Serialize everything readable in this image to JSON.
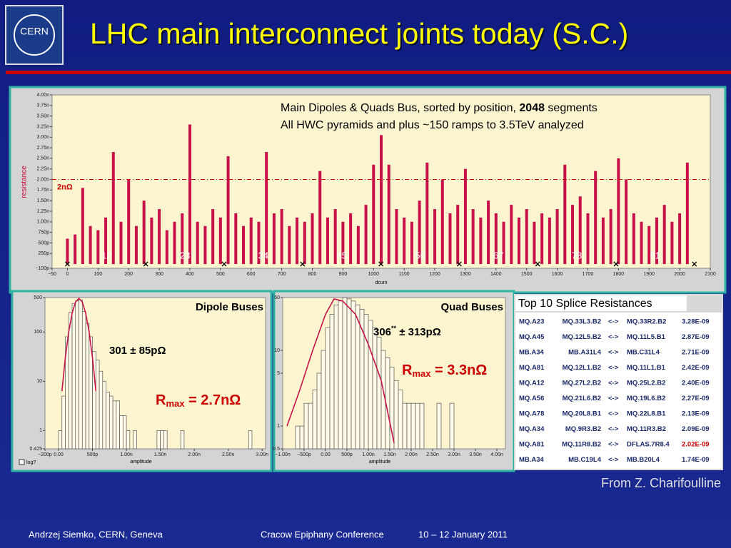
{
  "header": {
    "title": "LHC main interconnect joints today (S.C.)",
    "logo": "CERN"
  },
  "chart_data": [
    {
      "type": "bar",
      "note": {
        "line1": "Main Dipoles & Quads Bus, sorted by position, ",
        "line1_bold": "2048",
        "line1_end": " segments",
        "line2": "All HWC pyramids and plus ~150 ramps to 3.5TeV analyzed"
      },
      "y_label": "resistance",
      "x_label": "dcum",
      "color": "#c8104a",
      "x": [
        0,
        25,
        50,
        75,
        100,
        125,
        150,
        175,
        200,
        225,
        250,
        275,
        300,
        325,
        350,
        375,
        400,
        425,
        450,
        475,
        500,
        525,
        550,
        575,
        600,
        625,
        650,
        675,
        700,
        725,
        750,
        775,
        800,
        825,
        850,
        875,
        900,
        925,
        950,
        975,
        1000,
        1025,
        1050,
        1075,
        1100,
        1125,
        1150,
        1175,
        1200,
        1225,
        1250,
        1275,
        1300,
        1325,
        1350,
        1375,
        1400,
        1425,
        1450,
        1475,
        1500,
        1525,
        1550,
        1575,
        1600,
        1625,
        1650,
        1675,
        1700,
        1725,
        1750,
        1775,
        1800,
        1825,
        1850,
        1875,
        1900,
        1925,
        1950,
        1975,
        2000,
        2025
      ],
      "values": [
        0.6,
        0.7,
        1.8,
        0.9,
        0.8,
        1.1,
        2.65,
        1.0,
        2.0,
        0.9,
        1.5,
        1.1,
        1.3,
        0.8,
        1.0,
        1.2,
        3.3,
        1.0,
        0.9,
        1.3,
        1.1,
        2.55,
        1.2,
        0.9,
        1.1,
        1.0,
        2.65,
        1.2,
        1.3,
        0.9,
        1.1,
        1.0,
        1.2,
        2.2,
        1.1,
        1.3,
        1.0,
        1.2,
        0.9,
        1.4,
        2.35,
        3.05,
        2.35,
        1.3,
        1.1,
        1.0,
        1.5,
        2.4,
        1.3,
        2.0,
        1.2,
        1.4,
        2.25,
        1.3,
        1.1,
        1.5,
        1.2,
        1.0,
        1.4,
        1.1,
        1.3,
        1.0,
        1.2,
        1.1,
        1.3,
        2.35,
        1.4,
        1.6,
        1.2,
        2.2,
        1.1,
        1.3,
        2.5,
        2.0,
        1.2,
        1.0,
        0.9,
        1.1,
        1.4,
        1.0,
        1.2,
        2.4
      ],
      "xlim": [
        -50,
        2100
      ],
      "xticks": [
        {
          "value": -50,
          "label": "−50"
        },
        0,
        100,
        200,
        300,
        400,
        500,
        600,
        700,
        800,
        900,
        1000,
        1100,
        1200,
        1300,
        1400,
        1500,
        1600,
        1700,
        1800,
        1900,
        2000,
        2100
      ],
      "ylim": [
        -0.1,
        4.0
      ],
      "yticks": [
        {
          "value": 4.0,
          "label": "4.00n"
        },
        {
          "value": 3.75,
          "label": "3.75n"
        },
        {
          "value": 3.5,
          "label": "3.50n"
        },
        {
          "value": 3.25,
          "label": "3.25n"
        },
        {
          "value": 3.0,
          "label": "3.00n"
        },
        {
          "value": 2.75,
          "label": "2.75n"
        },
        {
          "value": 2.5,
          "label": "2.50n"
        },
        {
          "value": 2.25,
          "label": "2.25n"
        },
        {
          "value": 2.0,
          "label": "2.00n"
        },
        {
          "value": 1.75,
          "label": "1.75n"
        },
        {
          "value": 1.5,
          "label": "1.50n"
        },
        {
          "value": 1.25,
          "label": "1.25n"
        },
        {
          "value": 1.0,
          "label": "1.00n"
        },
        {
          "value": 0.75,
          "label": "750p"
        },
        {
          "value": 0.5,
          "label": "500p"
        },
        {
          "value": 0.25,
          "label": "250p"
        },
        {
          "value": -0.1,
          "label": "−100p"
        }
      ],
      "threshold": 2,
      "threshold_label": "2nΩ",
      "threshold_color": "#cc0000",
      "boundaries": [
        0,
        256,
        512,
        768,
        1024,
        1280,
        1536,
        1792,
        2048
      ],
      "sector_labels": [
        "12",
        "23",
        "34",
        "45",
        "56",
        "67",
        "78",
        "81"
      ]
    },
    {
      "type": "histogram",
      "title": "Dipole Buses",
      "stat": [
        "301 ± 85pΩ"
      ],
      "rmax": [
        "R",
        "max",
        " = 2.7nΩ"
      ],
      "x_label": "amplitude",
      "log_label": "log?",
      "log_y": true,
      "color": "#fffbe6",
      "fit_color": "#c8104a",
      "bins": [
        0,
        0.05,
        0.1,
        0.15,
        0.2,
        0.25,
        0.3,
        0.35,
        0.4,
        0.45,
        0.5,
        0.55,
        0.6,
        0.65,
        0.7,
        0.75,
        0.8,
        0.85,
        0.9,
        0.95,
        1.0,
        1.05,
        1.1,
        1.15,
        1.2,
        1.25,
        1.3,
        1.35,
        1.4,
        1.45,
        1.5,
        1.55,
        1.6,
        1.65,
        1.7,
        1.75,
        1.8,
        1.85,
        1.9,
        1.95,
        2.0,
        2.05,
        2.1,
        2.15,
        2.2,
        2.25,
        2.3,
        2.35,
        2.4,
        2.45,
        2.5,
        2.55,
        2.6,
        2.65,
        2.7,
        2.75,
        2.8,
        2.85
      ],
      "counts": [
        1,
        5,
        80,
        250,
        380,
        430,
        450,
        260,
        150,
        80,
        40,
        27,
        16,
        10,
        6,
        5,
        4,
        4,
        2,
        2,
        1,
        0,
        1,
        0,
        0,
        0,
        0,
        0,
        0,
        1,
        1,
        1,
        0,
        0,
        0,
        0,
        1,
        0,
        0,
        0,
        0,
        0,
        0,
        0,
        0,
        0,
        0,
        0,
        0,
        0,
        0,
        0,
        0,
        0,
        0,
        0,
        1
      ],
      "fit": {
        "x": [
          0.05,
          0.1,
          0.15,
          0.2,
          0.25,
          0.3,
          0.35,
          0.4,
          0.45,
          0.5,
          0.55
        ],
        "values": [
          6.3,
          30,
          101,
          240,
          404,
          480,
          404,
          240,
          101,
          30,
          6.3
        ]
      },
      "xlim": [
        -0.2,
        3.05
      ],
      "xticks": [
        {
          "value": -0.2,
          "label": "−200p"
        },
        {
          "value": 0,
          "label": "0.00"
        },
        {
          "value": 0.5,
          "label": "500p"
        },
        {
          "value": 1.0,
          "label": "1.00n"
        },
        {
          "value": 1.5,
          "label": "1.50n"
        },
        {
          "value": 2.0,
          "label": "2.00n"
        },
        {
          "value": 2.5,
          "label": "2.50n"
        },
        {
          "value": 3.0,
          "label": "3.00n"
        }
      ],
      "ylim": [
        0.425,
        500
      ],
      "yticks": [
        500,
        100,
        10,
        1,
        0.425
      ]
    },
    {
      "type": "histogram",
      "title": "Quad Buses",
      "stat": [
        "306",
        "**",
        " ± 313pΩ"
      ],
      "rmax": [
        "R",
        "max",
        " = 3.3nΩ"
      ],
      "x_label": "amplitude",
      "log_y": true,
      "color": "#fffbe6",
      "fit_color": "#c8104a",
      "bins": [
        -0.7,
        -0.6,
        -0.5,
        -0.4,
        -0.3,
        -0.2,
        -0.1,
        0,
        0.1,
        0.2,
        0.3,
        0.4,
        0.5,
        0.6,
        0.7,
        0.8,
        0.9,
        1.0,
        1.1,
        1.2,
        1.3,
        1.4,
        1.5,
        1.6,
        1.7,
        1.8,
        1.9,
        2.0,
        2.1,
        2.2,
        2.3,
        2.4,
        2.5,
        2.6,
        2.7,
        2.8,
        2.9,
        3.0
      ],
      "counts": [
        1,
        1,
        2,
        2,
        3,
        5,
        10,
        20,
        30,
        40,
        45,
        50,
        48,
        45,
        40,
        35,
        30,
        25,
        20,
        15,
        10,
        8,
        6,
        4,
        3,
        2,
        2,
        2,
        2,
        2,
        0,
        0,
        0,
        2,
        0,
        0,
        2
      ],
      "fit": {
        "x": [
          -0.9,
          -0.6,
          -0.3,
          0,
          0.2,
          0.4,
          0.7,
          1.0,
          1.3,
          1.6
        ],
        "values": [
          1,
          3,
          10,
          30,
          48,
          45,
          30,
          12,
          4,
          0.6
        ]
      },
      "xlim": [
        -1.0,
        4.2
      ],
      "xticks": [
        {
          "value": -1.0,
          "label": "−1.00n"
        },
        {
          "value": -0.5,
          "label": "−500p"
        },
        {
          "value": 0,
          "label": "0.00"
        },
        {
          "value": 0.5,
          "label": "500p"
        },
        {
          "value": 1.0,
          "label": "1.00n"
        },
        {
          "value": 1.5,
          "label": "1.50n"
        },
        {
          "value": 2.0,
          "label": "2.00n"
        },
        {
          "value": 2.5,
          "label": "2.50n"
        },
        {
          "value": 3.0,
          "label": "3.00n"
        },
        {
          "value": 3.5,
          "label": "3.50n"
        },
        {
          "value": 4.0,
          "label": "4.00n"
        }
      ],
      "ylim": [
        0.5,
        50
      ],
      "yticks": [
        50,
        10,
        5,
        1,
        0.5
      ]
    }
  ],
  "table": {
    "title": "Top 10 Splice Resistances",
    "rows": [
      [
        "MQ.A23",
        "MQ.33L3.B2",
        "<->",
        "MQ.33R2.B2",
        "3.28E-09"
      ],
      [
        "MQ.A45",
        "MQ.12L5.B2",
        "<->",
        "MQ.11L5.B1",
        "2.87E-09"
      ],
      [
        "MB.A34",
        "MB.A31L4",
        "<->",
        "MB.C31L4",
        "2.71E-09"
      ],
      [
        "MQ.A81",
        "MQ.12L1.B2",
        "<->",
        "MQ.11L1.B1",
        "2.42E-09"
      ],
      [
        "MQ.A12",
        "MQ.27L2.B2",
        "<->",
        "MQ.25L2.B2",
        "2.40E-09"
      ],
      [
        "MQ.A56",
        "MQ.21L6.B2",
        "<->",
        "MQ.19L6.B2",
        "2.27E-09"
      ],
      [
        "MQ.A78",
        "MQ.20L8.B1",
        "<->",
        "MQ.22L8.B1",
        "2.13E-09"
      ],
      [
        "MQ.A34",
        "MQ.9R3.B2",
        "<->",
        "MQ.11R3.B2",
        "2.09E-09"
      ],
      [
        "MQ.A81",
        "MQ.11R8.B2",
        "<->",
        "DFLAS.7R8.4",
        "2.02E-09"
      ],
      [
        "MB.A34",
        "MB.C19L4",
        "<->",
        "MB.B20L4",
        "1.74E-09"
      ]
    ],
    "highlight": {
      "row": 8,
      "col": 4,
      "color": "#cc0000"
    }
  },
  "source": "From Z. Charifoulline",
  "footer": {
    "author": "Andrzej Siemko, CERN, Geneva",
    "conference": "Cracow Epiphany Conference",
    "date": "10 – 12 January 2011"
  }
}
